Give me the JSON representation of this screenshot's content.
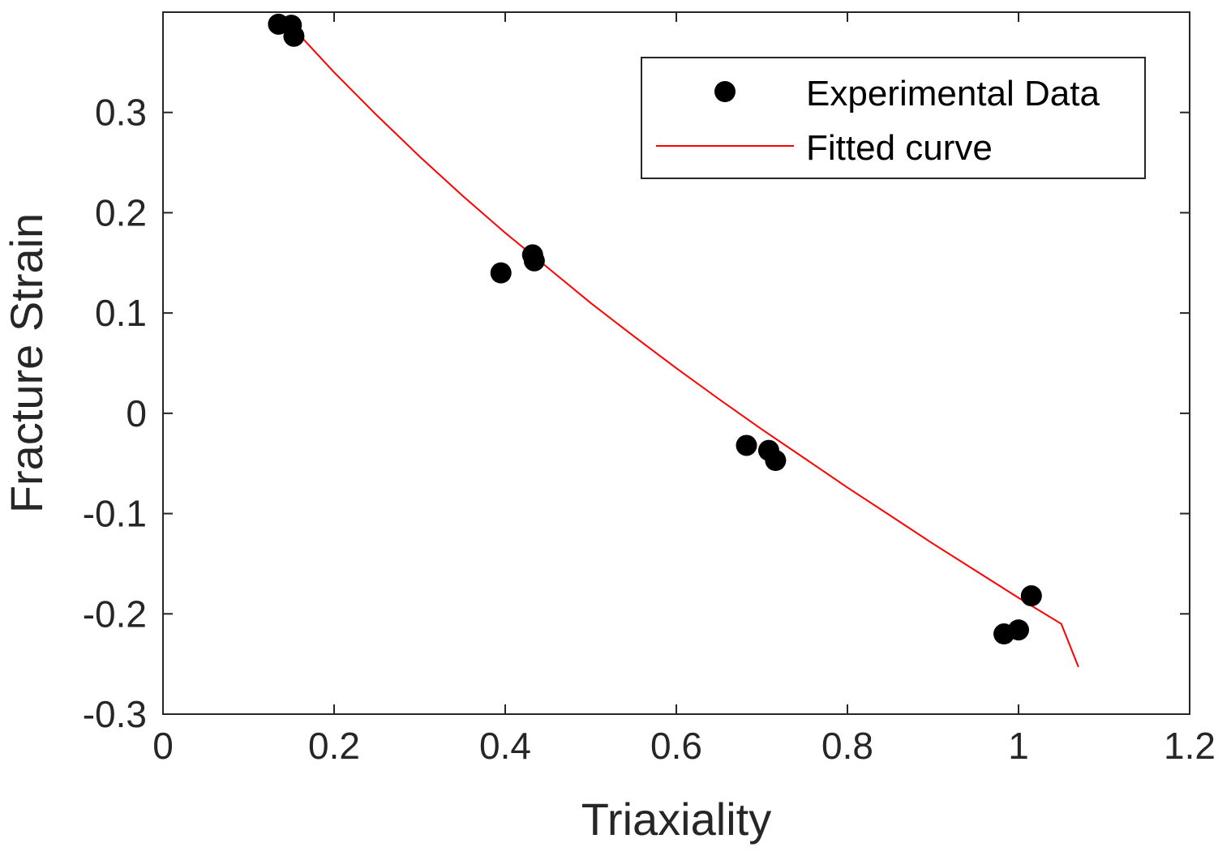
{
  "chart_data": {
    "type": "scatter",
    "title": "",
    "xlabel": "Triaxiality",
    "ylabel": "Fracture Strain",
    "xlim": [
      0,
      1.2
    ],
    "ylim": [
      -0.3,
      0.4
    ],
    "xticks": [
      0,
      0.2,
      0.4,
      0.6,
      0.8,
      1,
      1.2
    ],
    "xtick_labels": [
      "0",
      "0.2",
      "0.4",
      "0.6",
      "0.8",
      "1",
      "1.2"
    ],
    "yticks": [
      -0.3,
      -0.2,
      -0.1,
      0,
      0.1,
      0.2,
      0.3
    ],
    "ytick_labels": [
      "-0.3",
      "-0.2",
      "-0.1",
      "0",
      "0.1",
      "0.2",
      "0.3"
    ],
    "grid": false,
    "legend_position": "top-right",
    "series": [
      {
        "name": "Experimental Data",
        "kind": "scatter",
        "color": "#000000",
        "points": [
          {
            "x": 0.135,
            "y": 0.388
          },
          {
            "x": 0.15,
            "y": 0.387
          },
          {
            "x": 0.153,
            "y": 0.376
          },
          {
            "x": 0.395,
            "y": 0.14
          },
          {
            "x": 0.432,
            "y": 0.158
          },
          {
            "x": 0.434,
            "y": 0.152
          },
          {
            "x": 0.682,
            "y": -0.032
          },
          {
            "x": 0.708,
            "y": -0.037
          },
          {
            "x": 0.716,
            "y": -0.047
          },
          {
            "x": 0.983,
            "y": -0.22
          },
          {
            "x": 1.0,
            "y": -0.216
          },
          {
            "x": 1.015,
            "y": -0.182
          }
        ]
      },
      {
        "name": "Fitted curve",
        "kind": "line",
        "color": "#ff0000",
        "points": [
          {
            "x": 0.15,
            "y": 0.386
          },
          {
            "x": 0.2,
            "y": 0.34
          },
          {
            "x": 0.25,
            "y": 0.297
          },
          {
            "x": 0.3,
            "y": 0.256
          },
          {
            "x": 0.35,
            "y": 0.217
          },
          {
            "x": 0.4,
            "y": 0.18
          },
          {
            "x": 0.45,
            "y": 0.145
          },
          {
            "x": 0.5,
            "y": 0.11
          },
          {
            "x": 0.55,
            "y": 0.077
          },
          {
            "x": 0.6,
            "y": 0.045
          },
          {
            "x": 0.65,
            "y": 0.014
          },
          {
            "x": 0.7,
            "y": -0.016
          },
          {
            "x": 0.75,
            "y": -0.045
          },
          {
            "x": 0.8,
            "y": -0.074
          },
          {
            "x": 0.85,
            "y": -0.102
          },
          {
            "x": 0.9,
            "y": -0.13
          },
          {
            "x": 0.95,
            "y": -0.157
          },
          {
            "x": 1.0,
            "y": -0.184
          },
          {
            "x": 1.05,
            "y": -0.21
          },
          {
            "x": 1.07,
            "y": -0.253
          }
        ]
      }
    ]
  }
}
